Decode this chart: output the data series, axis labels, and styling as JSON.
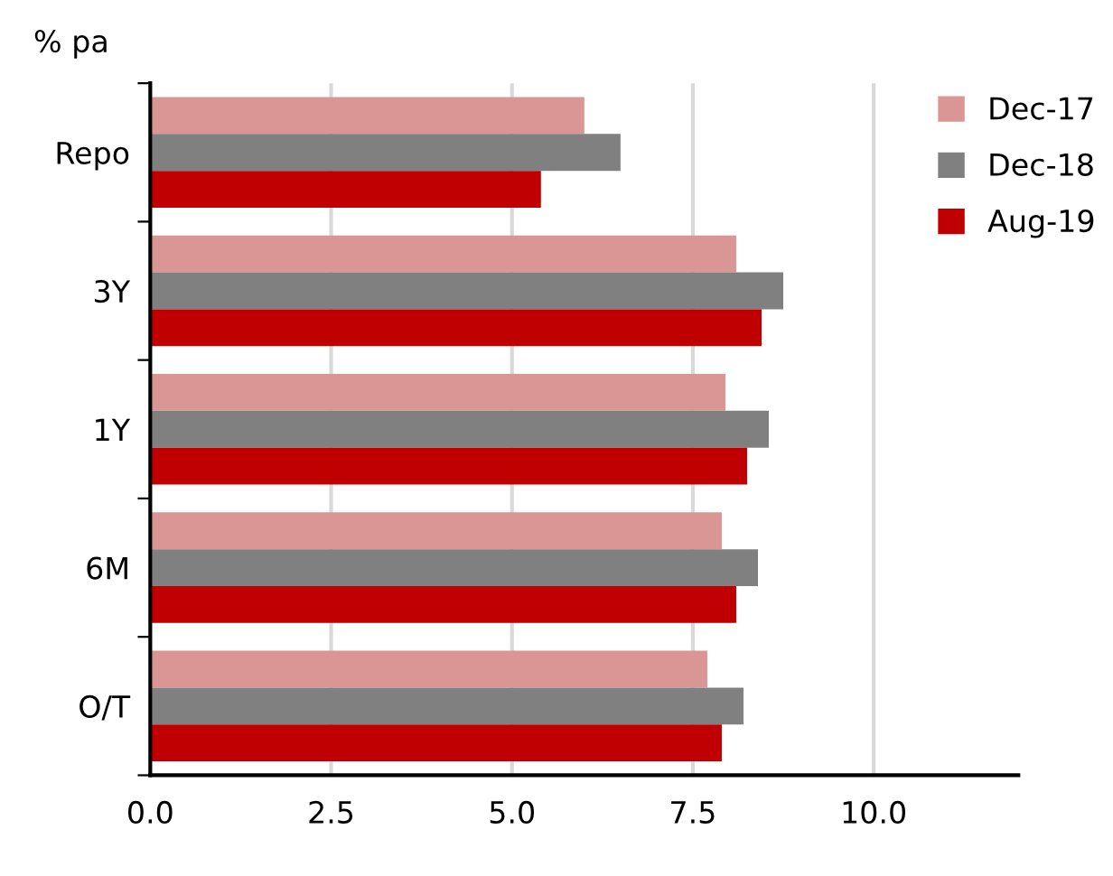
{
  "chart_data": {
    "type": "bar",
    "orientation": "horizontal",
    "ylabel": "% pa",
    "categories": [
      "Repo",
      "3Y",
      "1Y",
      "6M",
      "O/T"
    ],
    "series": [
      {
        "name": "Dec-17",
        "color": "#da9694",
        "values": [
          6.0,
          8.1,
          7.95,
          7.9,
          7.7
        ]
      },
      {
        "name": "Dec-18",
        "color": "#808080",
        "values": [
          6.5,
          8.75,
          8.55,
          8.4,
          8.2
        ]
      },
      {
        "name": "Aug-19",
        "color": "#c00000",
        "values": [
          5.4,
          8.45,
          8.25,
          8.1,
          7.9
        ]
      }
    ],
    "xlim": [
      0,
      12
    ],
    "xticks": [
      {
        "value": 0,
        "label": "0.0"
      },
      {
        "value": 2.5,
        "label": "2.5"
      },
      {
        "value": 5,
        "label": "5.0"
      },
      {
        "value": 7.5,
        "label": "7.5"
      },
      {
        "value": 10,
        "label": "10.0"
      }
    ],
    "grid": "x",
    "legend": "top right"
  }
}
